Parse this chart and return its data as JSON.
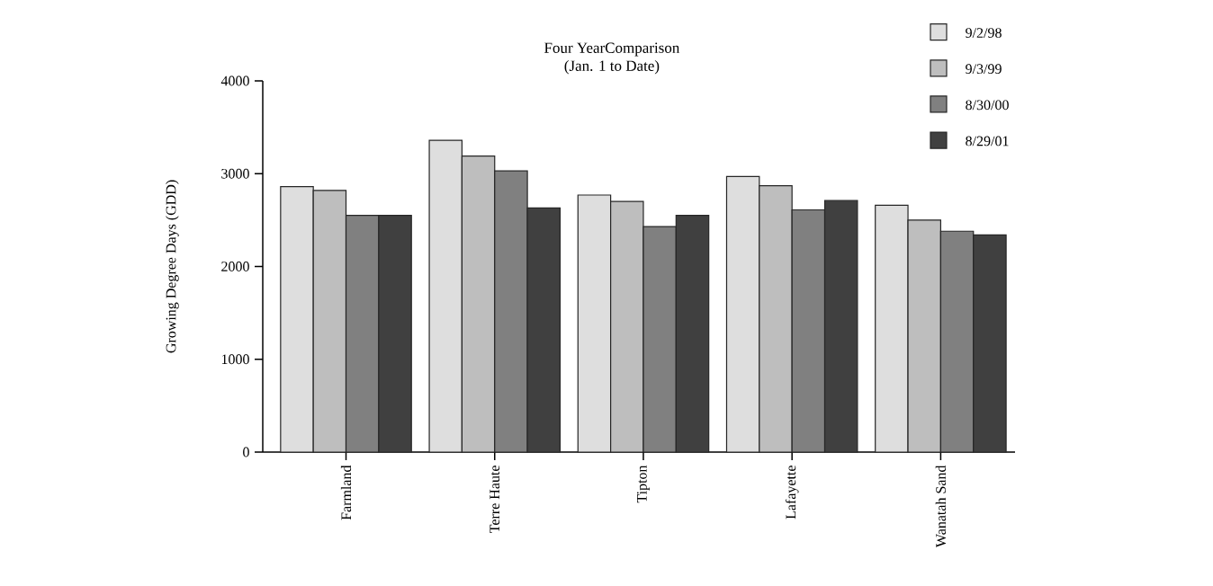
{
  "chart_data": {
    "type": "bar",
    "title": "Four YearComparison",
    "subtitle": "(Jan. 1 to Date)",
    "ylabel": "Growing Degree Days (GDD)",
    "categories": [
      "Farmland",
      "Terre Haute",
      "Tipton",
      "Lafayette",
      "Wanatah Sand"
    ],
    "series": [
      {
        "name": "9/2/98",
        "color": "#dedede",
        "values": [
          2860,
          3360,
          2770,
          2970,
          2660
        ]
      },
      {
        "name": "9/3/99",
        "color": "#bebebe",
        "values": [
          2820,
          3190,
          2700,
          2870,
          2500
        ]
      },
      {
        "name": "8/30/00",
        "color": "#808080",
        "values": [
          2550,
          3030,
          2430,
          2610,
          2380
        ]
      },
      {
        "name": "8/29/01",
        "color": "#404040",
        "values": [
          2550,
          2630,
          2550,
          2710,
          2340
        ]
      }
    ],
    "ylim": [
      0,
      4000
    ],
    "yticks": [
      0,
      1000,
      2000,
      3000,
      4000
    ],
    "grid": false,
    "legend": "top right"
  }
}
